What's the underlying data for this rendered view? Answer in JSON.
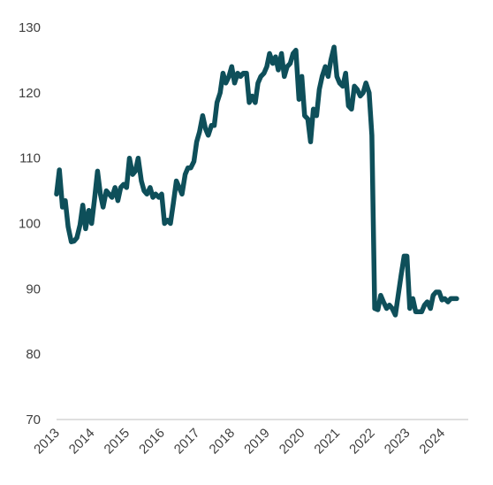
{
  "chart_data": {
    "type": "line",
    "title": "",
    "xlabel": "",
    "ylabel": "",
    "ylim": [
      70,
      130
    ],
    "xlim": [
      2013,
      2024.75
    ],
    "y_ticks": [
      "70",
      "80",
      "90",
      "100",
      "110",
      "120",
      "130"
    ],
    "x_ticks": [
      "2013",
      "2014",
      "2015",
      "2016",
      "2017",
      "2018",
      "2019",
      "2020",
      "2021",
      "2022",
      "2023",
      "2024"
    ],
    "grid": false,
    "legend": "none",
    "line_color": "#0e4f5a",
    "series": [
      {
        "x": [
          2013.0,
          2013.08,
          2013.17,
          2013.25,
          2013.33,
          2013.42,
          2013.5,
          2013.58,
          2013.67,
          2013.75,
          2013.83,
          2013.92,
          2014.0,
          2014.08,
          2014.17,
          2014.25,
          2014.33,
          2014.42,
          2014.5,
          2014.58,
          2014.67,
          2014.75,
          2014.83,
          2014.92,
          2015.0,
          2015.08,
          2015.17,
          2015.25,
          2015.33,
          2015.42,
          2015.5,
          2015.58,
          2015.67,
          2015.75,
          2015.83,
          2015.92,
          2016.0,
          2016.08,
          2016.17,
          2016.25,
          2016.33,
          2016.42,
          2016.5,
          2016.58,
          2016.67,
          2016.75,
          2016.83,
          2016.92,
          2017.0,
          2017.08,
          2017.17,
          2017.25,
          2017.33,
          2017.42,
          2017.5,
          2017.58,
          2017.67,
          2017.75,
          2017.83,
          2017.92,
          2018.0,
          2018.08,
          2018.17,
          2018.25,
          2018.33,
          2018.42,
          2018.5,
          2018.58,
          2018.67,
          2018.75,
          2018.83,
          2018.92,
          2019.0,
          2019.08,
          2019.17,
          2019.25,
          2019.33,
          2019.42,
          2019.5,
          2019.58,
          2019.67,
          2019.75,
          2019.83,
          2019.92,
          2020.0,
          2020.08,
          2020.17,
          2020.25,
          2020.33,
          2020.42,
          2020.5,
          2020.58,
          2020.67,
          2020.75,
          2020.83,
          2020.92,
          2021.0,
          2021.08,
          2021.17,
          2021.25,
          2021.33,
          2021.42,
          2021.5,
          2021.58,
          2021.67,
          2021.75,
          2021.83,
          2021.92,
          2022.0,
          2022.08,
          2022.17,
          2022.25,
          2022.33,
          2022.42,
          2022.5,
          2022.58,
          2022.67,
          2022.75,
          2022.83,
          2022.92,
          2023.0,
          2023.08,
          2023.17,
          2023.25,
          2023.33,
          2023.42,
          2023.5,
          2023.58,
          2023.67,
          2023.75,
          2023.83,
          2023.92,
          2024.0,
          2024.08,
          2024.17,
          2024.25,
          2024.33,
          2024.42
        ],
        "y": [
          104.5,
          108.2,
          102.5,
          103.5,
          99.5,
          97.2,
          97.3,
          97.8,
          99.8,
          102.8,
          99.2,
          102.0,
          100.0,
          103.5,
          108.0,
          104.5,
          102.5,
          105.0,
          104.5,
          104.0,
          105.5,
          103.5,
          105.5,
          106.0,
          105.5,
          110.0,
          107.5,
          108.0,
          110.0,
          106.5,
          105.0,
          104.5,
          105.5,
          104.0,
          104.5,
          104.0,
          104.5,
          100.0,
          100.5,
          100.0,
          103.0,
          106.5,
          105.5,
          104.5,
          107.5,
          108.5,
          108.5,
          109.5,
          112.5,
          114.0,
          116.5,
          114.5,
          113.5,
          115.0,
          115.0,
          118.5,
          120.0,
          123.0,
          121.5,
          122.5,
          124.0,
          121.5,
          123.0,
          122.5,
          123.0,
          123.0,
          118.5,
          119.5,
          118.5,
          121.5,
          122.5,
          123.0,
          124.0,
          126.0,
          124.5,
          125.5,
          123.5,
          126.0,
          122.5,
          124.0,
          124.5,
          126.0,
          126.5,
          119.0,
          122.5,
          116.5,
          116.0,
          112.5,
          117.5,
          116.5,
          120.5,
          122.5,
          124.0,
          122.5,
          125.0,
          127.0,
          122.5,
          121.5,
          121.0,
          123.0,
          118.0,
          117.5,
          121.0,
          120.5,
          119.5,
          120.0,
          121.5,
          120.0,
          113.5,
          87.0,
          86.8,
          89.0,
          88.0,
          87.0,
          87.5,
          87.0,
          86.0,
          89.0,
          92.0,
          95.0,
          95.0,
          87.0,
          88.5,
          86.5,
          86.5,
          86.5,
          87.5,
          88.0,
          87.0,
          89.0,
          89.5,
          89.5,
          88.3,
          88.5,
          88.0,
          88.5,
          88.5,
          88.5
        ]
      }
    ]
  }
}
